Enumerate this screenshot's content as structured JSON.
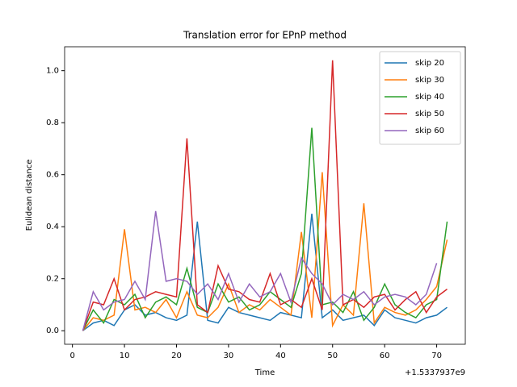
{
  "chart_data": {
    "type": "line",
    "title": "Translation error for EPnP method",
    "x_label": "Time",
    "y_label": "Eulidean distance",
    "x_offset_label": "+1.5337937e9",
    "x": [
      2,
      4,
      6,
      8,
      10,
      12,
      14,
      16,
      18,
      20,
      22,
      24,
      26,
      28,
      30,
      32,
      34,
      36,
      38,
      40,
      42,
      44,
      46,
      48,
      50,
      52,
      54,
      56,
      58,
      60,
      62,
      64,
      66,
      68,
      70,
      72
    ],
    "series": [
      {
        "name": "skip 20",
        "color": "#1f77b4",
        "values": [
          0,
          0.03,
          0.04,
          0.02,
          0.08,
          0.1,
          0.06,
          0.07,
          0.05,
          0.04,
          0.06,
          0.42,
          0.04,
          0.03,
          0.09,
          0.07,
          0.06,
          0.05,
          0.04,
          0.07,
          0.06,
          0.05,
          0.45,
          0.05,
          0.08,
          0.04,
          0.05,
          0.06,
          0.02,
          0.08,
          0.05,
          0.04,
          0.03,
          0.05,
          0.06,
          0.09
        ]
      },
      {
        "name": "skip 30",
        "color": "#ff7f0e",
        "values": [
          0,
          0.05,
          0.04,
          0.06,
          0.39,
          0.08,
          0.09,
          0.07,
          0.12,
          0.05,
          0.15,
          0.06,
          0.05,
          0.09,
          0.18,
          0.07,
          0.1,
          0.08,
          0.12,
          0.09,
          0.06,
          0.38,
          0.05,
          0.61,
          0.02,
          0.1,
          0.06,
          0.49,
          0.03,
          0.09,
          0.07,
          0.06,
          0.08,
          0.12,
          0.17,
          0.35
        ]
      },
      {
        "name": "skip 40",
        "color": "#2ca02c",
        "values": [
          0,
          0.08,
          0.03,
          0.12,
          0.1,
          0.14,
          0.05,
          0.11,
          0.13,
          0.1,
          0.24,
          0.09,
          0.07,
          0.18,
          0.11,
          0.13,
          0.08,
          0.1,
          0.15,
          0.12,
          0.09,
          0.22,
          0.78,
          0.1,
          0.11,
          0.07,
          0.15,
          0.04,
          0.09,
          0.18,
          0.1,
          0.07,
          0.05,
          0.1,
          0.12,
          0.42
        ]
      },
      {
        "name": "skip 50",
        "color": "#d62728",
        "values": [
          0,
          0.11,
          0.1,
          0.2,
          0.08,
          0.12,
          0.13,
          0.15,
          0.14,
          0.13,
          0.74,
          0.1,
          0.07,
          0.25,
          0.16,
          0.15,
          0.12,
          0.11,
          0.22,
          0.1,
          0.12,
          0.09,
          0.2,
          0.08,
          1.04,
          0.1,
          0.12,
          0.09,
          0.13,
          0.14,
          0.08,
          0.12,
          0.15,
          0.07,
          0.13,
          0.16
        ]
      },
      {
        "name": "skip 60",
        "color": "#9467bd",
        "values": [
          0,
          0.15,
          0.08,
          0.11,
          0.12,
          0.19,
          0.12,
          0.46,
          0.19,
          0.2,
          0.19,
          0.14,
          0.18,
          0.12,
          0.22,
          0.11,
          0.18,
          0.13,
          0.15,
          0.22,
          0.11,
          0.28,
          0.22,
          0.18,
          0.1,
          0.14,
          0.12,
          0.15,
          0.1,
          0.13,
          0.14,
          0.13,
          0.1,
          0.14,
          0.26,
          null
        ]
      }
    ],
    "xlim": [
      -1.5,
      75.5
    ],
    "ylim": [
      -0.052,
      1.092
    ],
    "xticks": [
      0,
      10,
      20,
      30,
      40,
      50,
      60,
      70
    ],
    "yticks": [
      {
        "value": 0,
        "label": "0.0"
      },
      {
        "value": 0.2,
        "label": "0.2"
      },
      {
        "value": 0.4,
        "label": "0.4"
      },
      {
        "value": 0.6,
        "label": "0.6"
      },
      {
        "value": 0.8,
        "label": "0.8"
      },
      {
        "value": 1,
        "label": "1.0"
      }
    ],
    "legend": "upper right"
  }
}
